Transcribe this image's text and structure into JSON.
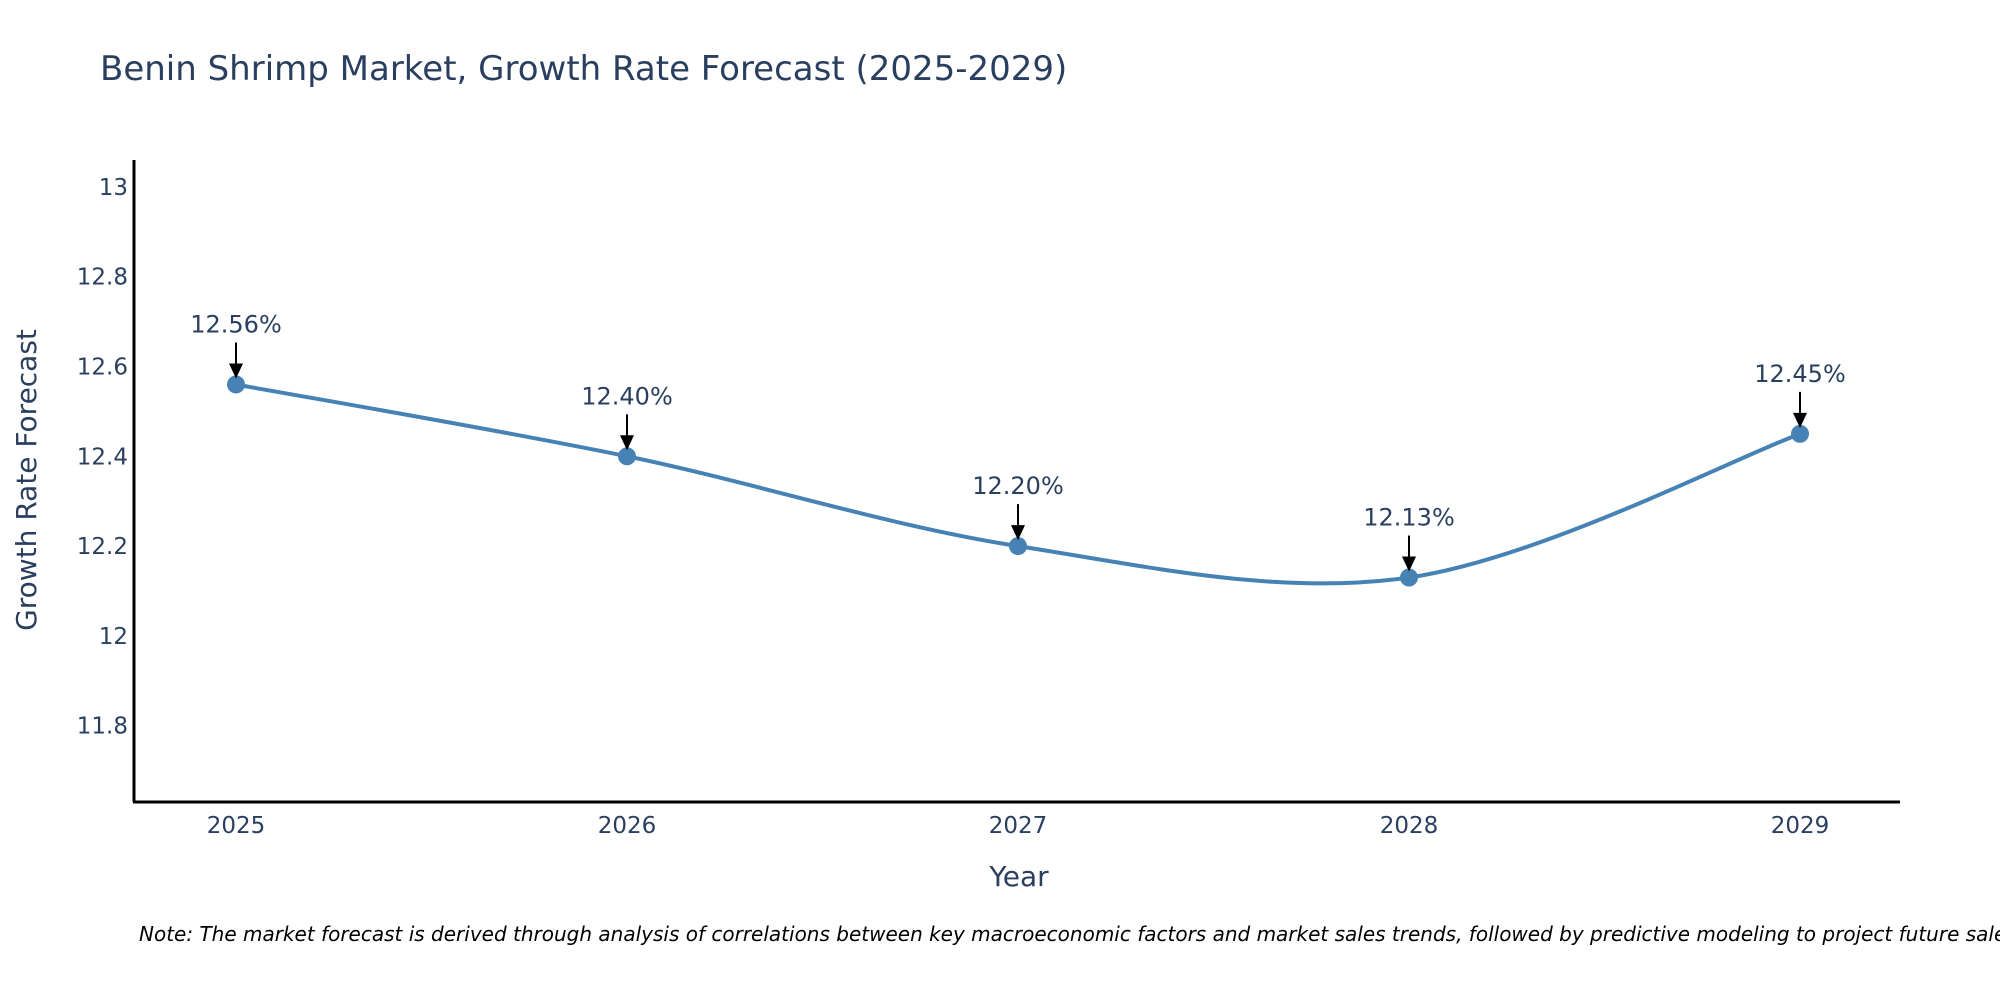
{
  "chart_data": {
    "type": "line",
    "title": "Benin Shrimp Market, Growth Rate Forecast (2025-2029)",
    "xlabel": "Year",
    "ylabel": "Growth Rate Forecast",
    "categories": [
      "2025",
      "2026",
      "2027",
      "2028",
      "2029"
    ],
    "series": [
      {
        "name": "Growth Rate Forecast",
        "values": [
          12.56,
          12.4,
          12.2,
          12.13,
          12.45
        ],
        "color": "#4682b4"
      }
    ],
    "annotations": [
      "12.56%",
      "12.40%",
      "12.20%",
      "12.13%",
      "12.45%"
    ],
    "yticks": [
      "11.8",
      "12",
      "12.2",
      "12.4",
      "12.6",
      "12.8",
      "13"
    ],
    "ytick_values": [
      11.8,
      12.0,
      12.2,
      12.4,
      12.6,
      12.8,
      13.0
    ],
    "ylim": [
      11.63,
      13.06
    ],
    "line_shape": "spline",
    "grid": false,
    "note": "Note: The market forecast is derived through analysis of correlations between key macroeconomic factors and market sales trends, followed by predictive modeling to project future sales."
  }
}
